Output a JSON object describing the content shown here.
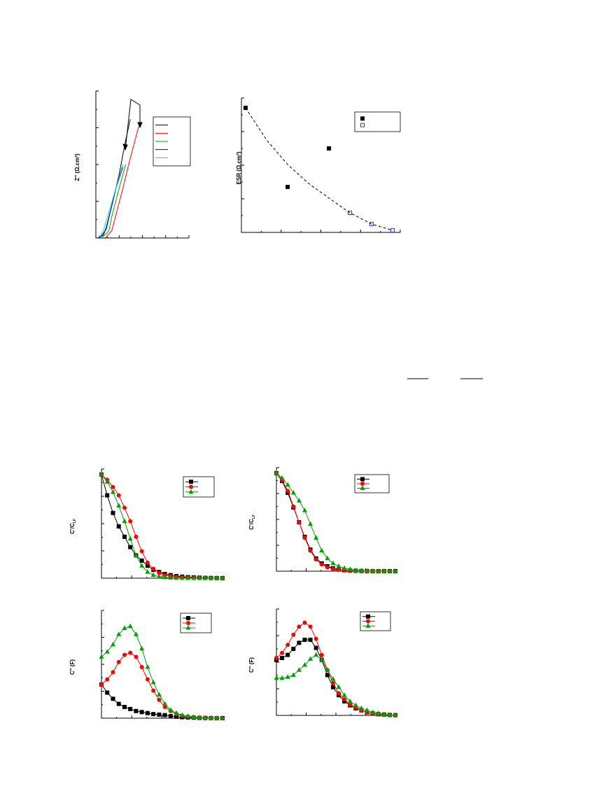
{
  "chart_data": [
    {
      "type": "line",
      "ylabel": "Z'' (Ω.cm²)",
      "xlim": [
        0,
        100
      ],
      "ylim": [
        0,
        100
      ],
      "series": [
        {
          "color": "#000000",
          "x": [
            2,
            8,
            11,
            16,
            25,
            32,
            37
          ],
          "values": [
            0,
            2,
            7,
            20,
            45,
            69,
            84
          ]
        },
        {
          "color": "#ff0000",
          "x": [
            10,
            17,
            21,
            29,
            36,
            46
          ],
          "values": [
            0,
            5,
            15,
            35,
            54,
            79
          ]
        },
        {
          "color": "#00aa00",
          "x": [
            6,
            14,
            17,
            25,
            32
          ],
          "values": [
            0,
            5,
            15,
            35,
            52
          ]
        },
        {
          "color": "#0000cc",
          "x": [
            4,
            11,
            15,
            22,
            29
          ],
          "values": [
            0,
            6,
            17,
            36,
            50
          ]
        },
        {
          "color": "#00dddd",
          "x": [
            2,
            8,
            11,
            17,
            29
          ],
          "values": [
            0,
            5,
            12,
            25,
            52
          ]
        }
      ]
    },
    {
      "type": "scatter",
      "ylabel": "ESR (Ω.cm²)",
      "xlim": [
        0,
        100
      ],
      "ylim": [
        0,
        100
      ],
      "series": [
        {
          "color": "#000000",
          "marker": "square",
          "x": [
            2.6,
            29.1,
            55.1
          ],
          "values": [
            96.7,
            35.3,
            65.2
          ]
        },
        {
          "color": "#1f3fcf",
          "marker": "square-open",
          "x": [
            68.3,
            81.9,
            95.2
          ],
          "values": [
            15.2,
            6.5,
            1.6
          ]
        },
        {
          "color": "#000000",
          "style": "dashed",
          "x": [
            2.6,
            15.9,
            29.1,
            42.3,
            55.1,
            68.3,
            81.9,
            95.2
          ],
          "values": [
            96.7,
            71.7,
            52.7,
            38,
            26.6,
            15.2,
            6.5,
            1.6
          ]
        }
      ]
    },
    {
      "type": "line",
      "ylabel": "C'/C",
      "ylabel_subscript": "LF",
      "xlim": [
        0,
        21
      ],
      "ylim": [
        0,
        1
      ],
      "series": [
        {
          "color": "#000000",
          "marker": "square",
          "values": [
            1,
            0.8,
            0.63,
            0.5,
            0.4,
            0.3,
            0.22,
            0.17,
            0.12,
            0.08,
            0.06,
            0.04,
            0.03,
            0.02,
            0.015,
            0.01,
            0.008,
            0.005,
            0.003,
            0.002,
            0.001,
            0
          ]
        },
        {
          "color": "#ff0000",
          "marker": "circle",
          "values": [
            1,
            0.95,
            0.88,
            0.8,
            0.68,
            0.55,
            0.4,
            0.26,
            0.15,
            0.09,
            0.05,
            0.03,
            0.02,
            0.012,
            0.008,
            0.005,
            0.003,
            0.002,
            0.001,
            0,
            0,
            0
          ]
        },
        {
          "color": "#00a000",
          "marker": "triangle",
          "values": [
            1,
            0.93,
            0.83,
            0.7,
            0.55,
            0.38,
            0.22,
            0.12,
            0.06,
            0.03,
            0.015,
            0.008,
            0.004,
            0.002,
            0.001,
            0,
            0,
            0,
            0,
            0,
            0,
            0
          ]
        }
      ]
    },
    {
      "type": "line",
      "ylabel": "C'/C",
      "ylabel_subscript": "LF",
      "xlim": [
        0,
        21
      ],
      "ylim": [
        0,
        1
      ],
      "series": [
        {
          "color": "#000000",
          "marker": "square",
          "values": [
            1,
            0.92,
            0.8,
            0.65,
            0.5,
            0.35,
            0.22,
            0.13,
            0.08,
            0.05,
            0.03,
            0.02,
            0.01,
            0.006,
            0.004,
            0.002,
            0.001,
            0,
            0,
            0,
            0,
            0
          ]
        },
        {
          "color": "#ff0000",
          "marker": "circle",
          "values": [
            1,
            0.93,
            0.82,
            0.66,
            0.5,
            0.34,
            0.21,
            0.12,
            0.07,
            0.04,
            0.025,
            0.015,
            0.008,
            0.005,
            0.003,
            0.002,
            0.001,
            0,
            0,
            0,
            0,
            0
          ]
        },
        {
          "color": "#00a000",
          "marker": "triangle",
          "values": [
            1,
            0.95,
            0.88,
            0.8,
            0.72,
            0.62,
            0.48,
            0.34,
            0.21,
            0.13,
            0.08,
            0.05,
            0.03,
            0.02,
            0.01,
            0.006,
            0.004,
            0.002,
            0.001,
            0,
            0,
            0
          ]
        }
      ]
    },
    {
      "type": "line",
      "ylabel": "C'' (F)",
      "xlim": [
        0,
        21
      ],
      "ylim": [
        0,
        1
      ],
      "series": [
        {
          "color": "#000000",
          "marker": "square",
          "values": [
            0.33,
            0.25,
            0.19,
            0.14,
            0.11,
            0.09,
            0.07,
            0.06,
            0.05,
            0.04,
            0.035,
            0.03,
            0.02,
            0.015,
            0.01,
            0.008,
            0.005,
            0.003,
            0.002,
            0.001,
            0,
            0
          ]
        },
        {
          "color": "#ff0000",
          "marker": "circle",
          "values": [
            0.33,
            0.38,
            0.45,
            0.55,
            0.62,
            0.64,
            0.6,
            0.5,
            0.38,
            0.27,
            0.18,
            0.11,
            0.07,
            0.04,
            0.025,
            0.015,
            0.01,
            0.006,
            0.004,
            0.002,
            0.001,
            0
          ]
        },
        {
          "color": "#00a000",
          "marker": "triangle",
          "values": [
            0.6,
            0.65,
            0.72,
            0.82,
            0.88,
            0.9,
            0.82,
            0.68,
            0.5,
            0.35,
            0.23,
            0.14,
            0.08,
            0.05,
            0.03,
            0.02,
            0.01,
            0.006,
            0.003,
            0.002,
            0.001,
            0
          ]
        }
      ]
    },
    {
      "type": "line",
      "ylabel": "C'' (F)",
      "xlim": [
        0,
        21
      ],
      "ylim": [
        0,
        1
      ],
      "series": [
        {
          "color": "#000000",
          "marker": "square",
          "values": [
            0.55,
            0.57,
            0.6,
            0.66,
            0.72,
            0.75,
            0.75,
            0.67,
            0.55,
            0.4,
            0.28,
            0.2,
            0.14,
            0.1,
            0.07,
            0.05,
            0.03,
            0.02,
            0.012,
            0.008,
            0.004,
            0.002
          ]
        },
        {
          "color": "#ff0000",
          "marker": "circle",
          "values": [
            0.57,
            0.62,
            0.7,
            0.8,
            0.88,
            0.92,
            0.88,
            0.76,
            0.6,
            0.45,
            0.32,
            0.22,
            0.16,
            0.11,
            0.08,
            0.05,
            0.03,
            0.02,
            0.013,
            0.008,
            0.004,
            0.002
          ]
        },
        {
          "color": "#00a000",
          "marker": "triangle",
          "values": [
            0.37,
            0.37,
            0.38,
            0.4,
            0.45,
            0.5,
            0.56,
            0.6,
            0.55,
            0.45,
            0.36,
            0.28,
            0.2,
            0.14,
            0.1,
            0.07,
            0.05,
            0.03,
            0.02,
            0.012,
            0.006,
            0.003
          ]
        }
      ]
    }
  ]
}
